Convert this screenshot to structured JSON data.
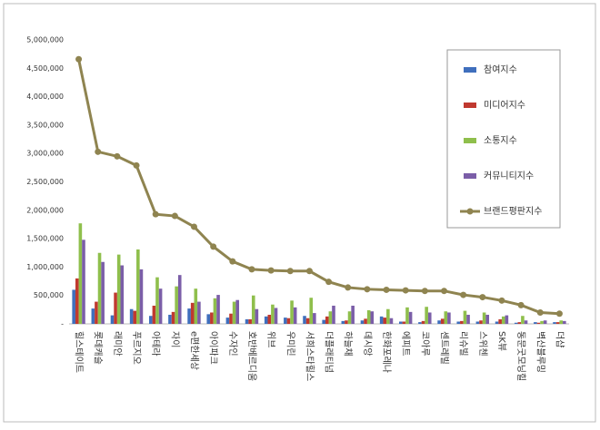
{
  "chart_data": {
    "type": "bar",
    "categories": [
      "힐스테이트",
      "롯데캐슬",
      "래미안",
      "푸르지오",
      "아테라",
      "자이",
      "e편한세상",
      "아이파크",
      "수자인",
      "호반베르디움",
      "위브",
      "우미린",
      "서희스타힐스",
      "더플래티넘",
      "하늘채",
      "데시앙",
      "한화포레나",
      "에피트",
      "코아루",
      "센트레빌",
      "리슈빌",
      "스위첸",
      "SK뷰",
      "동문굿모닝힐",
      "벽산블루밍",
      "더샵"
    ],
    "series": [
      {
        "name": "참여지수",
        "color": "#3f6fbd",
        "values": [
          600000,
          270000,
          150000,
          260000,
          140000,
          160000,
          270000,
          170000,
          110000,
          80000,
          130000,
          110000,
          140000,
          70000,
          50000,
          60000,
          130000,
          40000,
          30000,
          60000,
          40000,
          40000,
          40000,
          20000,
          30000,
          30000
        ]
      },
      {
        "name": "미디어지수",
        "color": "#c0392f",
        "values": [
          800000,
          390000,
          550000,
          230000,
          320000,
          210000,
          370000,
          200000,
          180000,
          80000,
          160000,
          100000,
          100000,
          130000,
          60000,
          90000,
          110000,
          40000,
          50000,
          90000,
          50000,
          60000,
          80000,
          30000,
          20000,
          30000
        ]
      },
      {
        "name": "소통지수",
        "color": "#8fbf4c",
        "values": [
          1770000,
          1250000,
          1220000,
          1310000,
          820000,
          660000,
          620000,
          450000,
          390000,
          500000,
          340000,
          410000,
          460000,
          220000,
          220000,
          240000,
          260000,
          290000,
          300000,
          220000,
          230000,
          200000,
          130000,
          140000,
          50000,
          60000
        ]
      },
      {
        "name": "커뮤니티지수",
        "color": "#7b5ea8",
        "values": [
          1480000,
          1090000,
          1030000,
          960000,
          620000,
          860000,
          390000,
          510000,
          420000,
          260000,
          280000,
          290000,
          190000,
          320000,
          320000,
          220000,
          100000,
          210000,
          200000,
          200000,
          160000,
          160000,
          150000,
          60000,
          60000,
          50000
        ]
      },
      {
        "name": "브랜드평판지수",
        "type": "line",
        "color": "#8f8450",
        "values": [
          4660000,
          3030000,
          2950000,
          2790000,
          1930000,
          1900000,
          1710000,
          1360000,
          1100000,
          960000,
          940000,
          930000,
          930000,
          740000,
          640000,
          610000,
          600000,
          590000,
          580000,
          580000,
          510000,
          470000,
          410000,
          330000,
          200000,
          180000
        ]
      }
    ],
    "ylim": [
      0,
      5000000
    ],
    "yticks": [
      {
        "value": 0,
        "label": "-"
      },
      {
        "value": 500000,
        "label": "500,000"
      },
      {
        "value": 1000000,
        "label": "1,000,000"
      },
      {
        "value": 1500000,
        "label": "1,500,000"
      },
      {
        "value": 2000000,
        "label": "2,000,000"
      },
      {
        "value": 2500000,
        "label": "2,500,000"
      },
      {
        "value": 3000000,
        "label": "3,000,000"
      },
      {
        "value": 3500000,
        "label": "3,500,000"
      },
      {
        "value": 4000000,
        "label": "4,000,000"
      },
      {
        "value": 4500000,
        "label": "4,500,000"
      },
      {
        "value": 5000000,
        "label": "5,000,000"
      }
    ],
    "grid": false,
    "legend": "right"
  }
}
